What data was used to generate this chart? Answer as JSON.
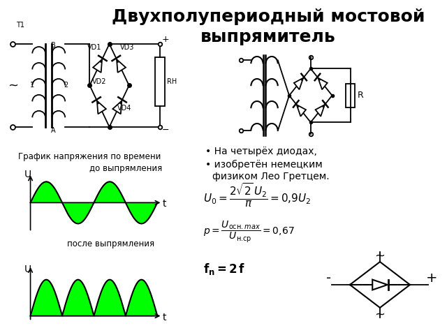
{
  "title_line1": "Двухполупериодный мостовой",
  "title_line2": "выпрямитель",
  "title_fontsize": 18,
  "title_fontweight": "bold",
  "bg_color": "#ffffff",
  "text_color": "#000000",
  "graph_label": "График напряжения по времени",
  "before_label": "до выпрямления",
  "after_label": "после выпрямления",
  "u_label": "U",
  "t_label": "t",
  "bullet1": "На четырёх диодах,",
  "bullet2": "изобретён немецким",
  "bullet3": "физиком Лео Гретцем.",
  "formula1": "$U_0 = \\dfrac{2\\sqrt{2}\\,U_2}{\\pi} = 0{,}9U_2$",
  "formula2": "$p = \\dfrac{U_{\\text{осн}.max}}{U_{\\text{н.ср}}} = 0{,}67$",
  "formula3": "$\\mathbf{f_n = 2\\,f}$",
  "green_fill": "#00ff00",
  "sine_color": "#000000",
  "tilde": "~",
  "minus": "-",
  "plus": "+"
}
